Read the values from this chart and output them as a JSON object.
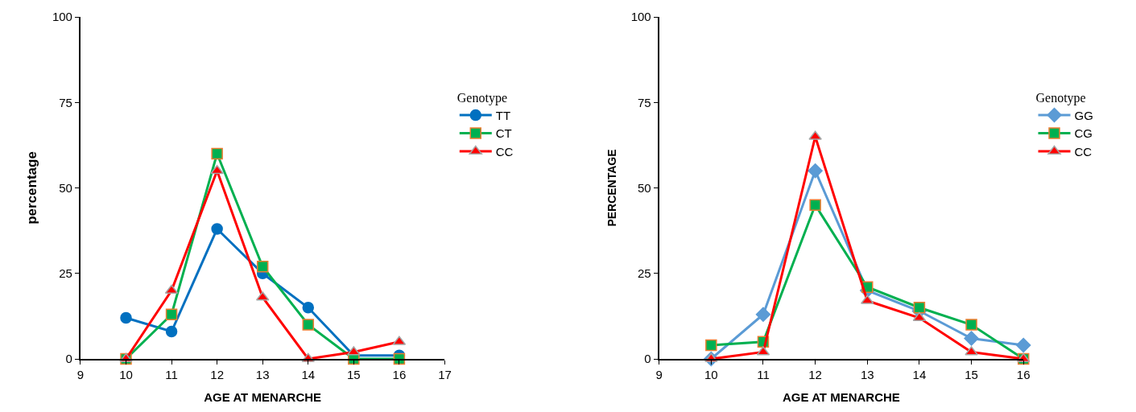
{
  "chart_data": [
    {
      "type": "line",
      "xlabel": "AGE AT MENARCHE",
      "ylabel": "percentage",
      "legend_title": "Genotype",
      "legend": "right",
      "x": [
        10,
        11,
        12,
        13,
        14,
        15,
        16
      ],
      "xlim": [
        9,
        17
      ],
      "xticks": [
        9,
        10,
        11,
        12,
        13,
        14,
        15,
        16,
        17
      ],
      "ylim": [
        0,
        100
      ],
      "yticks": [
        0,
        25,
        50,
        75,
        100
      ],
      "series": [
        {
          "name": "TT",
          "color": "#0070c0",
          "marker": "circle",
          "values": [
            12,
            8,
            38,
            25,
            15,
            1,
            1
          ]
        },
        {
          "name": "CT",
          "color": "#00b050",
          "marker": "square",
          "values": [
            0,
            13,
            60,
            27,
            10,
            0,
            0
          ]
        },
        {
          "name": "CC",
          "color": "#ff0000",
          "marker": "triangle",
          "values": [
            0,
            20,
            55,
            18,
            0,
            2,
            5
          ]
        }
      ]
    },
    {
      "type": "line",
      "xlabel": "AGE AT MENARCHE",
      "ylabel": "PERCENTAGE",
      "legend_title": "Genotype",
      "legend": "right",
      "x": [
        10,
        11,
        12,
        13,
        14,
        15,
        16
      ],
      "xlim": [
        9,
        16
      ],
      "xticks": [
        9,
        10,
        11,
        12,
        13,
        14,
        15,
        16
      ],
      "ylim": [
        0,
        100
      ],
      "yticks": [
        0,
        25,
        50,
        75,
        100
      ],
      "series": [
        {
          "name": "GG",
          "color": "#5b9bd5",
          "marker": "diamond",
          "values": [
            0,
            13,
            55,
            20,
            14,
            6,
            4
          ]
        },
        {
          "name": "CG",
          "color": "#00b050",
          "marker": "square",
          "values": [
            4,
            5,
            45,
            21,
            15,
            10,
            0
          ]
        },
        {
          "name": "CC",
          "color": "#ff0000",
          "marker": "triangle",
          "values": [
            0,
            2,
            65,
            17,
            12,
            2,
            0
          ]
        }
      ]
    }
  ]
}
